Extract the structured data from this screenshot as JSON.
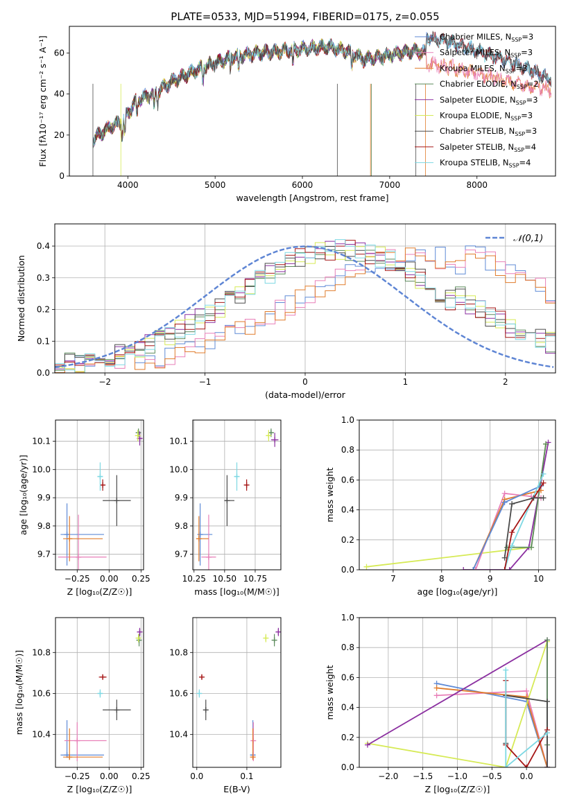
{
  "figure": {
    "title": "PLATE=0533, MJD=51994, FIBERID=0175, z=0.055"
  },
  "colors": {
    "chabrier_miles": "#5e8ad6",
    "salpeter_miles": "#e87fb8",
    "kroupa_miles": "#e07b2a",
    "chabrier_elodie": "#5b8a5b",
    "salpeter_elodie": "#8b2fa0",
    "kroupa_elodie": "#d6ea55",
    "chabrier_stelib": "#4a4a4a",
    "salpeter_stelib": "#a51515",
    "kroupa_stelib": "#7dd8e3",
    "normal": "#5e85d4",
    "grid": "#b0b0b0"
  },
  "chart_data": [
    {
      "id": "spectrum",
      "type": "line",
      "xlabel": "wavelength [Angstrom, rest frame]",
      "ylabel": "Flux [fλ10⁻¹⁷ erg cm⁻² s⁻¹ A⁻¹]",
      "xlim": [
        3330,
        8900
      ],
      "ylim": [
        0,
        73
      ],
      "xticks": [
        "4000",
        "5000",
        "6000",
        "7000",
        "8000"
      ],
      "yticks": [
        "0",
        "20",
        "40",
        "60"
      ],
      "legend": [
        {
          "label": "Chabrier MILES, N",
          "sub": "SSP",
          "tail": "=3"
        },
        {
          "label": "Salpeter MILES, N",
          "sub": "SSP",
          "tail": "=3"
        },
        {
          "label": "Kroupa MILES, N",
          "sub": "SSP",
          "tail": "=3"
        },
        {
          "label": "Chabrier ELODIE, N",
          "sub": "SSP",
          "tail": "=2"
        },
        {
          "label": "Salpeter ELODIE, N",
          "sub": "SSP",
          "tail": "=3"
        },
        {
          "label": "Kroupa ELODIE, N",
          "sub": "SSP",
          "tail": "=3"
        },
        {
          "label": "Chabrier STELIB, N",
          "sub": "SSP",
          "tail": "=3"
        },
        {
          "label": "Salpeter STELIB, N",
          "sub": "SSP",
          "tail": "=4"
        },
        {
          "label": "Kroupa STELIB, N",
          "sub": "SSP",
          "tail": "=4"
        }
      ],
      "legend_position": "upper-right",
      "continuum_knots": [
        [
          3600,
          18
        ],
        [
          3800,
          24
        ],
        [
          3950,
          27
        ],
        [
          4100,
          37
        ],
        [
          4300,
          40
        ],
        [
          4500,
          46
        ],
        [
          4800,
          52
        ],
        [
          5000,
          55
        ],
        [
          5200,
          58
        ],
        [
          5500,
          60
        ],
        [
          5800,
          61
        ],
        [
          6000,
          62
        ],
        [
          6300,
          63
        ],
        [
          6500,
          61
        ],
        [
          6700,
          57
        ],
        [
          6900,
          58
        ],
        [
          7100,
          60
        ],
        [
          7300,
          61
        ],
        [
          7420,
          60
        ]
      ],
      "kroupa_miles_red_knots": [
        [
          7420,
          55
        ],
        [
          7700,
          53
        ],
        [
          8000,
          50
        ],
        [
          8300,
          47
        ],
        [
          8500,
          45
        ],
        [
          8850,
          42
        ]
      ],
      "gray_red_knots": [
        [
          7420,
          68
        ],
        [
          7700,
          65
        ],
        [
          8000,
          61
        ],
        [
          8300,
          57
        ],
        [
          8600,
          52
        ],
        [
          8850,
          47
        ]
      ]
    },
    {
      "id": "residuals",
      "type": "step-histogram",
      "xlabel": "(data-model)/error",
      "ylabel": "Normed distribution",
      "xlim": [
        -2.5,
        2.5
      ],
      "ylim": [
        0,
        0.47
      ],
      "xticks": [
        "−2",
        "−1",
        "0",
        "1",
        "2"
      ],
      "yticks": [
        "0.0",
        "0.1",
        "0.2",
        "0.3",
        "0.4"
      ],
      "bin_width": 0.1,
      "legend": "𝒩(0,1)",
      "legend_position": "upper-right"
    },
    {
      "id": "age_vs_Z",
      "type": "errorbar",
      "xlabel": "Z [log₁₀(Z/Z☉)]",
      "ylabel": "age  [log₁₀(age/yr)]",
      "xlim": [
        -0.42,
        0.27
      ],
      "ylim": [
        9.645,
        10.175
      ],
      "xticks": [
        "−0.25",
        "0.00",
        "0.25"
      ],
      "yticks": [
        "9.7",
        "9.8",
        "9.9",
        "10.0",
        "10.1"
      ],
      "points": [
        {
          "s": "chabrier_miles",
          "x": -0.33,
          "xe": [
            0.05,
            0.29
          ],
          "y": 9.77,
          "ye": [
            0.11,
            0.11
          ]
        },
        {
          "s": "salpeter_miles",
          "x": -0.24,
          "xe": [
            0.16,
            0.22
          ],
          "y": 9.69,
          "ye": [
            0.15,
            0.15
          ]
        },
        {
          "s": "kroupa_miles",
          "x": -0.31,
          "xe": [
            0.05,
            0.26
          ],
          "y": 9.755,
          "ye": [
            0.08,
            0.08
          ]
        },
        {
          "s": "chabrier_elodie",
          "x": 0.23,
          "xe": [
            0.01,
            0.01
          ],
          "y": 10.13,
          "ye": [
            0.015,
            0.015
          ]
        },
        {
          "s": "salpeter_elodie",
          "x": 0.24,
          "xe": [
            0.01,
            0.01
          ],
          "y": 10.11,
          "ye": [
            0.025,
            0.025
          ]
        },
        {
          "s": "kroupa_elodie",
          "x": 0.225,
          "xe": [
            0.005,
            0.005
          ],
          "y": 10.12,
          "ye": [
            0.02,
            0.02
          ]
        },
        {
          "s": "chabrier_stelib",
          "x": 0.06,
          "xe": [
            0.11,
            0.11
          ],
          "y": 9.89,
          "ye": [
            0.09,
            0.09
          ]
        },
        {
          "s": "salpeter_stelib",
          "x": -0.05,
          "xe": [
            0.02,
            0.02
          ],
          "y": 9.945,
          "ye": [
            0.02,
            0.02
          ]
        },
        {
          "s": "kroupa_stelib",
          "x": -0.07,
          "xe": [
            0.02,
            0.02
          ],
          "y": 9.975,
          "ye": [
            0.05,
            0.05
          ]
        }
      ]
    },
    {
      "id": "age_vs_mass",
      "type": "errorbar",
      "xlabel": "mass [log₁₀(M/M☉)]",
      "ylabel": "",
      "xlim": [
        10.24,
        10.96
      ],
      "ylim": [
        9.645,
        10.175
      ],
      "xticks": [
        "10.25",
        "10.50",
        "10.75"
      ],
      "yticks": [
        "9.7",
        "9.8",
        "9.9",
        "10.0",
        "10.1"
      ],
      "points": [
        {
          "s": "chabrier_miles",
          "x": 10.3,
          "xe": [
            0.01,
            0.1
          ],
          "y": 9.77,
          "ye": [
            0.11,
            0.11
          ]
        },
        {
          "s": "salpeter_miles",
          "x": 10.37,
          "xe": [
            0.06,
            0.06
          ],
          "y": 9.69,
          "ye": [
            0.15,
            0.15
          ]
        },
        {
          "s": "kroupa_miles",
          "x": 10.29,
          "xe": [
            0.01,
            0.08
          ],
          "y": 9.755,
          "ye": [
            0.08,
            0.08
          ]
        },
        {
          "s": "chabrier_elodie",
          "x": 10.88,
          "xe": [
            0.02,
            0.02
          ],
          "y": 10.13,
          "ye": [
            0.015,
            0.015
          ]
        },
        {
          "s": "salpeter_elodie",
          "x": 10.91,
          "xe": [
            0.03,
            0.03
          ],
          "y": 10.105,
          "ye": [
            0.025,
            0.025
          ]
        },
        {
          "s": "kroupa_elodie",
          "x": 10.86,
          "xe": [
            0.02,
            0.02
          ],
          "y": 10.12,
          "ye": [
            0.02,
            0.02
          ]
        },
        {
          "s": "chabrier_stelib",
          "x": 10.52,
          "xe": [
            0.01,
            0.06
          ],
          "y": 9.89,
          "ye": [
            0.09,
            0.09
          ]
        },
        {
          "s": "salpeter_stelib",
          "x": 10.68,
          "xe": [
            0.01,
            0.01
          ],
          "y": 9.945,
          "ye": [
            0.02,
            0.02
          ]
        },
        {
          "s": "kroupa_stelib",
          "x": 10.6,
          "xe": [
            0.01,
            0.01
          ],
          "y": 9.975,
          "ye": [
            0.05,
            0.05
          ]
        }
      ]
    },
    {
      "id": "massweight_vs_age",
      "type": "line",
      "xlabel": "age  [log₁₀(age/yr)]",
      "ylabel": "mass weight",
      "xlim": [
        6.3,
        10.35
      ],
      "ylim": [
        0,
        1
      ],
      "xticks": [
        "7",
        "8",
        "9",
        "10"
      ],
      "yticks": [
        "0.0",
        "0.2",
        "0.4",
        "0.6",
        "0.8",
        "1.0"
      ],
      "series": [
        {
          "s": "kroupa_elodie",
          "x": [
            6.45,
            9.85,
            10.15
          ],
          "y": [
            0.02,
            0.15,
            0.84
          ]
        },
        {
          "s": "salpeter_elodie",
          "x": [
            8.45,
            9.4,
            9.8,
            10.2
          ],
          "y": [
            0.0,
            0.0,
            0.15,
            0.85
          ]
        },
        {
          "s": "chabrier_elodie",
          "x": [
            9.35,
            9.85,
            10.15
          ],
          "y": [
            0.15,
            0.15,
            0.84
          ]
        },
        {
          "s": "salpeter_miles",
          "x": [
            8.7,
            9.3,
            9.85,
            10.05
          ],
          "y": [
            0.0,
            0.51,
            0.49,
            0.48
          ]
        },
        {
          "s": "kroupa_miles",
          "x": [
            8.65,
            9.3,
            10.05
          ],
          "y": [
            0.0,
            0.47,
            0.53
          ]
        },
        {
          "s": "chabrier_miles",
          "x": [
            8.65,
            9.3,
            10.05
          ],
          "y": [
            0.0,
            0.45,
            0.56
          ]
        },
        {
          "s": "kroupa_stelib",
          "x": [
            9.3,
            9.45,
            10.1
          ],
          "y": [
            0.0,
            0.16,
            0.64
          ]
        },
        {
          "s": "salpeter_stelib",
          "x": [
            9.3,
            9.45,
            10.1
          ],
          "y": [
            0.0,
            0.25,
            0.58
          ]
        },
        {
          "s": "chabrier_stelib",
          "x": [
            9.3,
            9.45,
            9.9,
            10.1
          ],
          "y": [
            0.08,
            0.44,
            0.48,
            0.48
          ]
        }
      ]
    },
    {
      "id": "mass_vs_Z",
      "type": "errorbar",
      "xlabel": "Z [log₁₀(Z/Z☉)]",
      "ylabel": "mass [log₁₀(M/M☉)]",
      "xlim": [
        -0.42,
        0.27
      ],
      "ylim": [
        10.24,
        10.97
      ],
      "xticks": [
        "−0.25",
        "0.00",
        "0.25"
      ],
      "yticks": [
        "10.4",
        "10.6",
        "10.8"
      ],
      "points": [
        {
          "s": "chabrier_miles",
          "x": -0.33,
          "xe": [
            0.05,
            0.29
          ],
          "y": 10.3,
          "ye": [
            0.01,
            0.17
          ]
        },
        {
          "s": "salpeter_miles",
          "x": -0.25,
          "xe": [
            0.1,
            0.23
          ],
          "y": 10.37,
          "ye": [
            0.1,
            0.09
          ]
        },
        {
          "s": "kroupa_miles",
          "x": -0.31,
          "xe": [
            0.05,
            0.26
          ],
          "y": 10.29,
          "ye": [
            0.01,
            0.14
          ]
        },
        {
          "s": "chabrier_elodie",
          "x": 0.235,
          "xe": [
            0.005,
            0.005
          ],
          "y": 10.86,
          "ye": [
            0.03,
            0.03
          ]
        },
        {
          "s": "salpeter_elodie",
          "x": 0.24,
          "xe": [
            0.005,
            0.005
          ],
          "y": 10.9,
          "ye": [
            0.02,
            0.02
          ]
        },
        {
          "s": "kroupa_elodie",
          "x": 0.23,
          "xe": [
            0.005,
            0.005
          ],
          "y": 10.87,
          "ye": [
            0.02,
            0.02
          ]
        },
        {
          "s": "chabrier_stelib",
          "x": 0.06,
          "xe": [
            0.11,
            0.11
          ],
          "y": 10.52,
          "ye": [
            0.05,
            0.05
          ]
        },
        {
          "s": "salpeter_stelib",
          "x": -0.05,
          "xe": [
            0.03,
            0.03
          ],
          "y": 10.68,
          "ye": [
            0.01,
            0.01
          ]
        },
        {
          "s": "kroupa_stelib",
          "x": -0.07,
          "xe": [
            0.02,
            0.02
          ],
          "y": 10.6,
          "ye": [
            0.02,
            0.02
          ]
        }
      ]
    },
    {
      "id": "mass_vs_ebv",
      "type": "errorbar",
      "xlabel": "E(B-V)",
      "ylabel": "",
      "xlim": [
        -0.008,
        0.168
      ],
      "ylim": [
        10.24,
        10.97
      ],
      "xticks": [
        "0.0",
        "0.1"
      ],
      "yticks": [
        "10.4",
        "10.6",
        "10.8"
      ],
      "points": [
        {
          "s": "chabrier_miles",
          "x": 0.112,
          "xe": [
            0.0,
            0.0
          ],
          "y": 10.3,
          "ye": [
            0.01,
            0.17
          ]
        },
        {
          "s": "salpeter_miles",
          "x": 0.113,
          "xe": [
            0.0,
            0.0
          ],
          "y": 10.37,
          "ye": [
            0.1,
            0.09
          ]
        },
        {
          "s": "kroupa_miles",
          "x": 0.112,
          "xe": [
            0.0,
            0.0
          ],
          "y": 10.29,
          "ye": [
            0.01,
            0.14
          ]
        },
        {
          "s": "chabrier_elodie",
          "x": 0.155,
          "xe": [
            0.0,
            0.0
          ],
          "y": 10.86,
          "ye": [
            0.03,
            0.03
          ]
        },
        {
          "s": "salpeter_elodie",
          "x": 0.163,
          "xe": [
            0.0,
            0.0
          ],
          "y": 10.9,
          "ye": [
            0.02,
            0.02
          ]
        },
        {
          "s": "kroupa_elodie",
          "x": 0.138,
          "xe": [
            0.0,
            0.0
          ],
          "y": 10.87,
          "ye": [
            0.02,
            0.02
          ]
        },
        {
          "s": "chabrier_stelib",
          "x": 0.018,
          "xe": [
            0.0,
            0.0
          ],
          "y": 10.52,
          "ye": [
            0.05,
            0.05
          ]
        },
        {
          "s": "salpeter_stelib",
          "x": 0.01,
          "xe": [
            0.0,
            0.0
          ],
          "y": 10.68,
          "ye": [
            0.01,
            0.01
          ]
        },
        {
          "s": "kroupa_stelib",
          "x": 0.005,
          "xe": [
            0.0,
            0.0
          ],
          "y": 10.6,
          "ye": [
            0.02,
            0.02
          ]
        }
      ]
    },
    {
      "id": "massweight_vs_Z",
      "type": "line",
      "xlabel": "Z [log₁₀(Z/Z☉)]",
      "ylabel": "mass weight",
      "xlim": [
        -2.42,
        0.42
      ],
      "ylim": [
        0,
        1
      ],
      "xticks": [
        "−2.0",
        "−1.5",
        "−1.0",
        "−0.5",
        "0.0"
      ],
      "yticks": [
        "0.0",
        "0.2",
        "0.4",
        "0.6",
        "0.8",
        "1.0"
      ],
      "series": [
        {
          "s": "chabrier_miles",
          "x": [
            -1.3,
            0.0,
            0.3
          ],
          "y": [
            0.56,
            0.44,
            0.0
          ]
        },
        {
          "s": "salpeter_miles",
          "x": [
            -1.3,
            0.0,
            0.3
          ],
          "y": [
            0.48,
            0.51,
            0.0
          ]
        },
        {
          "s": "kroupa_miles",
          "x": [
            -1.3,
            0.0,
            0.3
          ],
          "y": [
            0.53,
            0.47,
            0.0
          ]
        },
        {
          "s": "kroupa_elodie",
          "x": [
            -2.3,
            -0.3,
            0.3
          ],
          "y": [
            0.16,
            0.0,
            0.84
          ]
        },
        {
          "s": "salpeter_elodie",
          "x": [
            -2.3,
            0.3,
            0.3
          ],
          "y": [
            0.15,
            0.85,
            0.0
          ]
        },
        {
          "s": "chabrier_elodie",
          "x": [
            0.3,
            0.3
          ],
          "y": [
            0.85,
            0.15
          ]
        },
        {
          "s": "chabrier_stelib",
          "x": [
            -0.3,
            -0.3,
            0.3,
            0.3
          ],
          "y": [
            0.16,
            0.48,
            0.44,
            0.0
          ]
        },
        {
          "s": "salpeter_stelib",
          "x": [
            -0.3,
            -0.3,
            0.0,
            0.3
          ],
          "y": [
            0.58,
            0.15,
            0.0,
            0.25
          ]
        },
        {
          "s": "kroupa_stelib",
          "x": [
            -0.3,
            -0.3,
            0.3
          ],
          "y": [
            0.65,
            0.0,
            0.23
          ]
        }
      ]
    }
  ]
}
